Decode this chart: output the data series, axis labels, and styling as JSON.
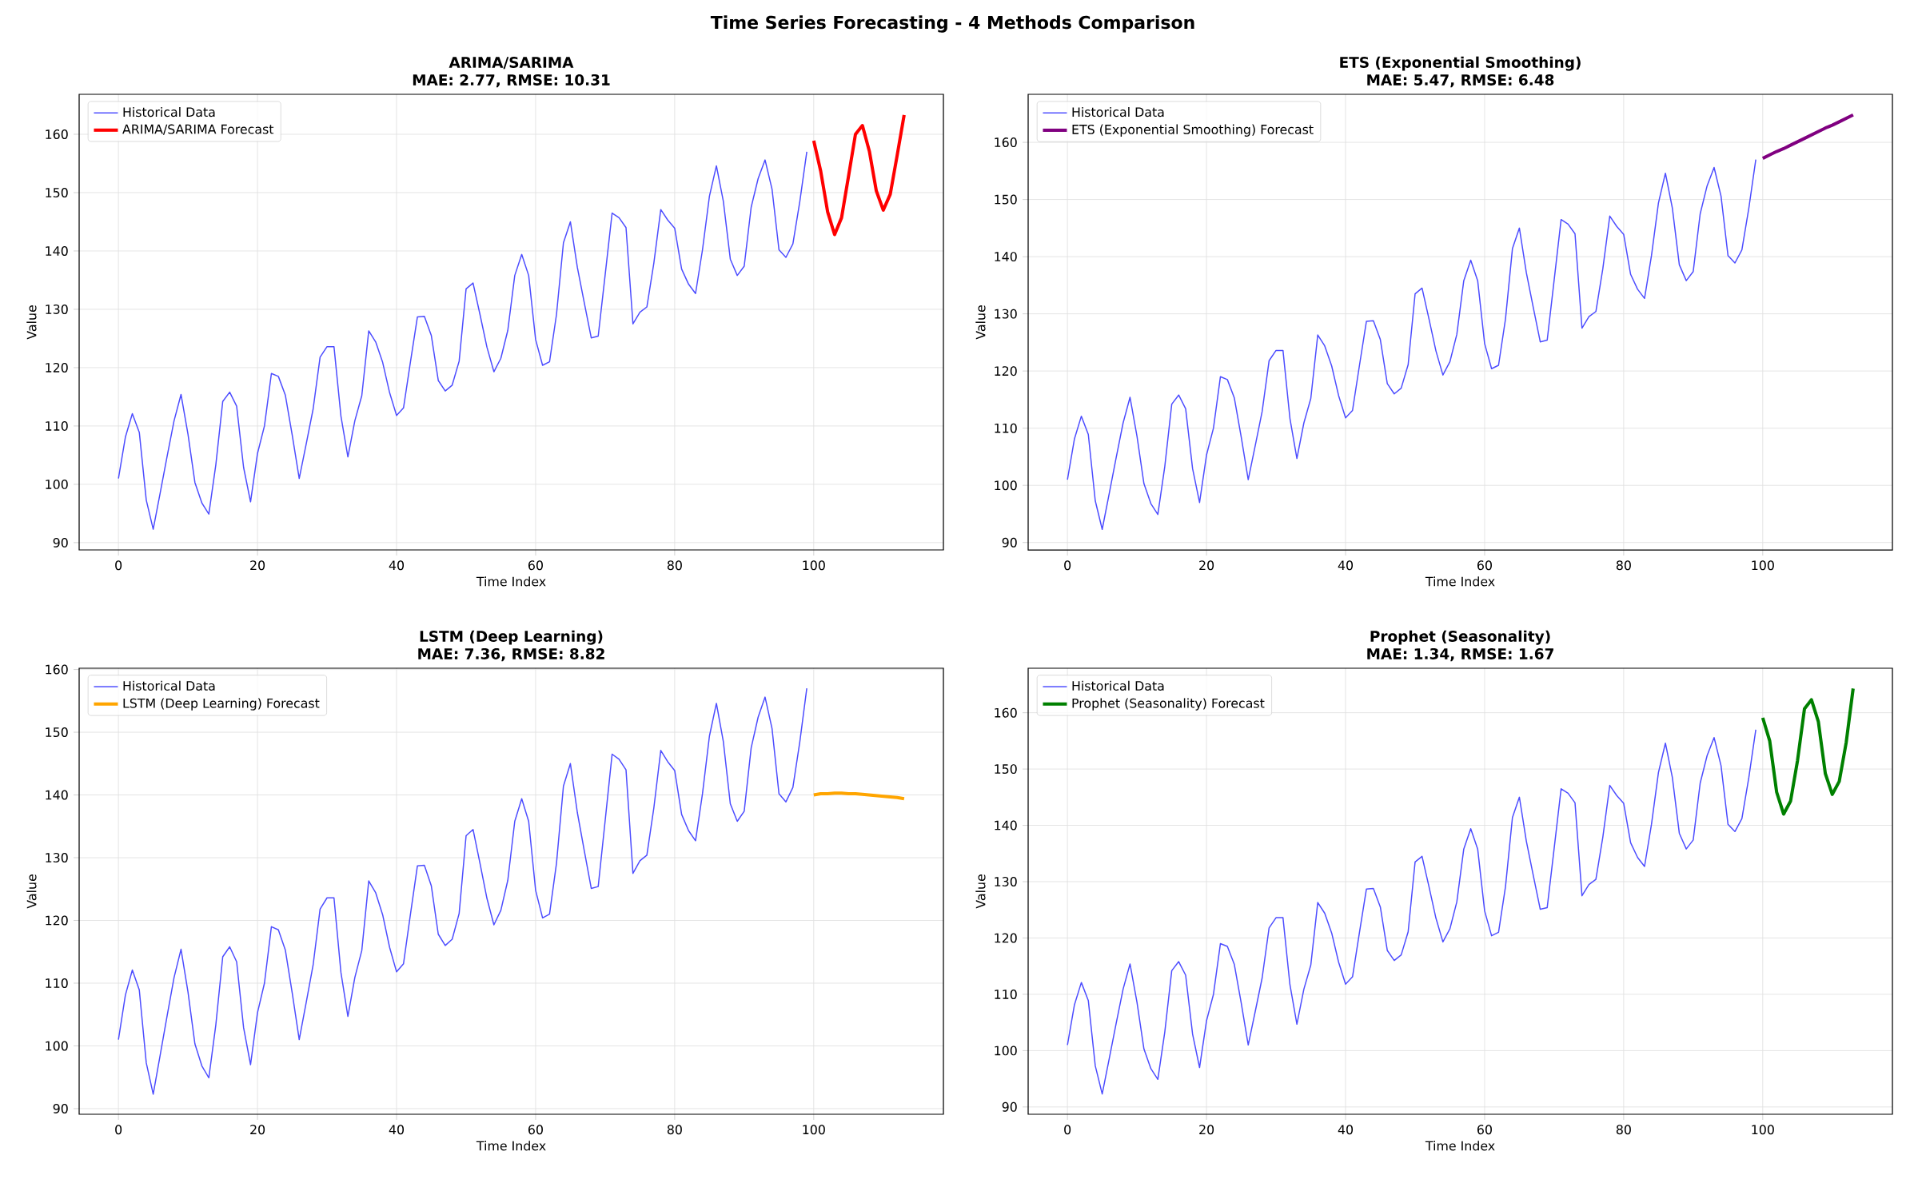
{
  "chart_data": [
    {
      "type": "line",
      "title": "ARIMA/SARIMA",
      "subtitle": "MAE: 2.77, RMSE: 10.31",
      "xlabel": "Time Index",
      "ylabel": "Value",
      "annotations": [
        "Time Series Forecasting - 4 Methods Comparison"
      ],
      "xlim": [
        -5.65,
        118.65
      ],
      "ylim": [
        88.75,
        166.85
      ],
      "xticks": [
        0,
        20,
        40,
        60,
        80,
        100
      ],
      "yticks": [
        90,
        100,
        110,
        120,
        130,
        140,
        150,
        160
      ],
      "grid": true,
      "legend": "top left",
      "series": [
        {
          "name": "Historical Data",
          "color": "#4d4dff",
          "x": [
            0,
            1,
            2,
            3,
            4,
            5,
            6,
            7,
            8,
            9,
            10,
            11,
            12,
            13,
            14,
            15,
            16,
            17,
            18,
            19,
            20,
            21,
            22,
            23,
            24,
            25,
            26,
            27,
            28,
            29,
            30,
            31,
            32,
            33,
            34,
            35,
            36,
            37,
            38,
            39,
            40,
            41,
            42,
            43,
            44,
            45,
            46,
            47,
            48,
            49,
            50,
            51,
            52,
            53,
            54,
            55,
            56,
            57,
            58,
            59,
            60,
            61,
            62,
            63,
            64,
            65,
            66,
            67,
            68,
            69,
            70,
            71,
            72,
            73,
            74,
            75,
            76,
            77,
            78,
            79,
            80,
            81,
            82,
            83,
            84,
            85,
            86,
            87,
            88,
            89,
            90,
            91,
            92,
            93,
            94,
            95,
            96,
            97,
            98,
            99
          ],
          "values": [
            101.0,
            108.1,
            112.1,
            108.9,
            97.3,
            92.3,
            98.5,
            104.8,
            110.9,
            115.4,
            108.6,
            100.3,
            96.8,
            94.9,
            103.3,
            114.2,
            115.8,
            113.4,
            102.9,
            97.0,
            105.3,
            110.0,
            119.0,
            118.5,
            115.3,
            108.4,
            101.0,
            106.9,
            112.9,
            121.8,
            123.6,
            123.6,
            111.7,
            104.7,
            110.9,
            115.2,
            126.3,
            124.4,
            120.9,
            115.7,
            111.8,
            113.1,
            121.0,
            128.7,
            128.8,
            125.5,
            117.8,
            116.0,
            117.0,
            121.1,
            133.5,
            134.5,
            129.1,
            123.5,
            119.3,
            121.6,
            126.4,
            135.8,
            139.4,
            135.8,
            124.8,
            120.4,
            121.0,
            129.1,
            141.4,
            145.0,
            137.2,
            131.1,
            125.1,
            125.4,
            135.9,
            146.5,
            145.7,
            144.0,
            127.5,
            129.5,
            130.4,
            137.9,
            147.1,
            145.3,
            143.9,
            136.9,
            134.3,
            132.7,
            140.2,
            149.4,
            154.6,
            148.5,
            138.6,
            135.8,
            137.4,
            147.5,
            152.4,
            155.6,
            150.6,
            140.2,
            138.9,
            141.2,
            148.5,
            157.0
          ]
        },
        {
          "name": "ARIMA/SARIMA Forecast",
          "color": "#ff0000",
          "x": [
            100,
            101,
            102,
            103,
            104,
            105,
            106,
            107,
            108,
            109,
            110,
            111,
            112,
            113
          ],
          "values": [
            158.9,
            153.7,
            146.7,
            142.8,
            145.7,
            152.8,
            160.0,
            161.5,
            157.1,
            150.3,
            147.0,
            149.7,
            156.4,
            163.3
          ]
        }
      ]
    },
    {
      "type": "line",
      "title": "ETS (Exponential Smoothing)",
      "subtitle": "MAE: 5.47, RMSE: 6.48",
      "xlabel": "Time Index",
      "ylabel": "Value",
      "xlim": [
        -5.65,
        118.65
      ],
      "ylim": [
        88.7,
        168.4
      ],
      "xticks": [
        0,
        20,
        40,
        60,
        80,
        100
      ],
      "yticks": [
        90,
        100,
        110,
        120,
        130,
        140,
        150,
        160
      ],
      "grid": true,
      "legend": "top left",
      "series": [
        {
          "name": "Historical Data",
          "color": "#4d4dff",
          "x": [
            0,
            1,
            2,
            3,
            4,
            5,
            6,
            7,
            8,
            9,
            10,
            11,
            12,
            13,
            14,
            15,
            16,
            17,
            18,
            19,
            20,
            21,
            22,
            23,
            24,
            25,
            26,
            27,
            28,
            29,
            30,
            31,
            32,
            33,
            34,
            35,
            36,
            37,
            38,
            39,
            40,
            41,
            42,
            43,
            44,
            45,
            46,
            47,
            48,
            49,
            50,
            51,
            52,
            53,
            54,
            55,
            56,
            57,
            58,
            59,
            60,
            61,
            62,
            63,
            64,
            65,
            66,
            67,
            68,
            69,
            70,
            71,
            72,
            73,
            74,
            75,
            76,
            77,
            78,
            79,
            80,
            81,
            82,
            83,
            84,
            85,
            86,
            87,
            88,
            89,
            90,
            91,
            92,
            93,
            94,
            95,
            96,
            97,
            98,
            99
          ],
          "values": [
            101.0,
            108.1,
            112.1,
            108.9,
            97.3,
            92.3,
            98.5,
            104.8,
            110.9,
            115.4,
            108.6,
            100.3,
            96.8,
            94.9,
            103.3,
            114.2,
            115.8,
            113.4,
            102.9,
            97.0,
            105.3,
            110.0,
            119.0,
            118.5,
            115.3,
            108.4,
            101.0,
            106.9,
            112.9,
            121.8,
            123.6,
            123.6,
            111.7,
            104.7,
            110.9,
            115.2,
            126.3,
            124.4,
            120.9,
            115.7,
            111.8,
            113.1,
            121.0,
            128.7,
            128.8,
            125.5,
            117.8,
            116.0,
            117.0,
            121.1,
            133.5,
            134.5,
            129.1,
            123.5,
            119.3,
            121.6,
            126.4,
            135.8,
            139.4,
            135.8,
            124.8,
            120.4,
            121.0,
            129.1,
            141.4,
            145.0,
            137.2,
            131.1,
            125.1,
            125.4,
            135.9,
            146.5,
            145.7,
            144.0,
            127.5,
            129.5,
            130.4,
            137.9,
            147.1,
            145.3,
            143.9,
            136.9,
            134.3,
            132.7,
            140.2,
            149.4,
            154.6,
            148.5,
            138.6,
            135.8,
            137.4,
            147.5,
            152.4,
            155.6,
            150.6,
            140.2,
            138.9,
            141.2,
            148.5,
            157.0
          ]
        },
        {
          "name": "ETS (Exponential Smoothing) Forecast",
          "color": "#800080",
          "x": [
            100,
            101,
            102,
            103,
            104,
            105,
            106,
            107,
            108,
            109,
            110,
            111,
            112,
            113
          ],
          "values": [
            157.2,
            157.8,
            158.4,
            158.9,
            159.5,
            160.1,
            160.7,
            161.3,
            161.9,
            162.5,
            163.0,
            163.6,
            164.2,
            164.8
          ]
        }
      ]
    },
    {
      "type": "line",
      "title": "LSTM (Deep Learning)",
      "subtitle": "MAE: 7.36, RMSE: 8.82",
      "xlabel": "Time Index",
      "ylabel": "Value",
      "xlim": [
        -5.65,
        118.65
      ],
      "ylim": [
        89.1,
        160.2
      ],
      "xticks": [
        0,
        20,
        40,
        60,
        80,
        100
      ],
      "yticks": [
        90,
        100,
        110,
        120,
        130,
        140,
        150,
        160
      ],
      "grid": true,
      "legend": "top left",
      "series": [
        {
          "name": "Historical Data",
          "color": "#4d4dff",
          "x": [
            0,
            1,
            2,
            3,
            4,
            5,
            6,
            7,
            8,
            9,
            10,
            11,
            12,
            13,
            14,
            15,
            16,
            17,
            18,
            19,
            20,
            21,
            22,
            23,
            24,
            25,
            26,
            27,
            28,
            29,
            30,
            31,
            32,
            33,
            34,
            35,
            36,
            37,
            38,
            39,
            40,
            41,
            42,
            43,
            44,
            45,
            46,
            47,
            48,
            49,
            50,
            51,
            52,
            53,
            54,
            55,
            56,
            57,
            58,
            59,
            60,
            61,
            62,
            63,
            64,
            65,
            66,
            67,
            68,
            69,
            70,
            71,
            72,
            73,
            74,
            75,
            76,
            77,
            78,
            79,
            80,
            81,
            82,
            83,
            84,
            85,
            86,
            87,
            88,
            89,
            90,
            91,
            92,
            93,
            94,
            95,
            96,
            97,
            98,
            99
          ],
          "values": [
            101.0,
            108.1,
            112.1,
            108.9,
            97.3,
            92.3,
            98.5,
            104.8,
            110.9,
            115.4,
            108.6,
            100.3,
            96.8,
            94.9,
            103.3,
            114.2,
            115.8,
            113.4,
            102.9,
            97.0,
            105.3,
            110.0,
            119.0,
            118.5,
            115.3,
            108.4,
            101.0,
            106.9,
            112.9,
            121.8,
            123.6,
            123.6,
            111.7,
            104.7,
            110.9,
            115.2,
            126.3,
            124.4,
            120.9,
            115.7,
            111.8,
            113.1,
            121.0,
            128.7,
            128.8,
            125.5,
            117.8,
            116.0,
            117.0,
            121.1,
            133.5,
            134.5,
            129.1,
            123.5,
            119.3,
            121.6,
            126.4,
            135.8,
            139.4,
            135.8,
            124.8,
            120.4,
            121.0,
            129.1,
            141.4,
            145.0,
            137.2,
            131.1,
            125.1,
            125.4,
            135.9,
            146.5,
            145.7,
            144.0,
            127.5,
            129.5,
            130.4,
            137.9,
            147.1,
            145.3,
            143.9,
            136.9,
            134.3,
            132.7,
            140.2,
            149.4,
            154.6,
            148.5,
            138.6,
            135.8,
            137.4,
            147.5,
            152.4,
            155.6,
            150.6,
            140.2,
            138.9,
            141.2,
            148.5,
            157.0
          ]
        },
        {
          "name": "LSTM (Deep Learning) Forecast",
          "color": "#ffa500",
          "x": [
            100,
            101,
            102,
            103,
            104,
            105,
            106,
            107,
            108,
            109,
            110,
            111,
            112,
            113
          ],
          "values": [
            140.0,
            140.2,
            140.2,
            140.3,
            140.3,
            140.2,
            140.2,
            140.1,
            140.0,
            139.9,
            139.8,
            139.7,
            139.6,
            139.4
          ]
        }
      ]
    },
    {
      "type": "line",
      "title": "Prophet (Seasonality)",
      "subtitle": "MAE: 1.34, RMSE: 1.67",
      "xlabel": "Time Index",
      "ylabel": "Value",
      "xlim": [
        -5.65,
        118.65
      ],
      "ylim": [
        88.7,
        167.9
      ],
      "xticks": [
        0,
        20,
        40,
        60,
        80,
        100
      ],
      "yticks": [
        90,
        100,
        110,
        120,
        130,
        140,
        150,
        160
      ],
      "grid": true,
      "legend": "top left",
      "series": [
        {
          "name": "Historical Data",
          "color": "#4d4dff",
          "x": [
            0,
            1,
            2,
            3,
            4,
            5,
            6,
            7,
            8,
            9,
            10,
            11,
            12,
            13,
            14,
            15,
            16,
            17,
            18,
            19,
            20,
            21,
            22,
            23,
            24,
            25,
            26,
            27,
            28,
            29,
            30,
            31,
            32,
            33,
            34,
            35,
            36,
            37,
            38,
            39,
            40,
            41,
            42,
            43,
            44,
            45,
            46,
            47,
            48,
            49,
            50,
            51,
            52,
            53,
            54,
            55,
            56,
            57,
            58,
            59,
            60,
            61,
            62,
            63,
            64,
            65,
            66,
            67,
            68,
            69,
            70,
            71,
            72,
            73,
            74,
            75,
            76,
            77,
            78,
            79,
            80,
            81,
            82,
            83,
            84,
            85,
            86,
            87,
            88,
            89,
            90,
            91,
            92,
            93,
            94,
            95,
            96,
            97,
            98,
            99
          ],
          "values": [
            101.0,
            108.1,
            112.1,
            108.9,
            97.3,
            92.3,
            98.5,
            104.8,
            110.9,
            115.4,
            108.6,
            100.3,
            96.8,
            94.9,
            103.3,
            114.2,
            115.8,
            113.4,
            102.9,
            97.0,
            105.3,
            110.0,
            119.0,
            118.5,
            115.3,
            108.4,
            101.0,
            106.9,
            112.9,
            121.8,
            123.6,
            123.6,
            111.7,
            104.7,
            110.9,
            115.2,
            126.3,
            124.4,
            120.9,
            115.7,
            111.8,
            113.1,
            121.0,
            128.7,
            128.8,
            125.5,
            117.8,
            116.0,
            117.0,
            121.1,
            133.5,
            134.5,
            129.1,
            123.5,
            119.3,
            121.6,
            126.4,
            135.8,
            139.4,
            135.8,
            124.8,
            120.4,
            121.0,
            129.1,
            141.4,
            145.0,
            137.2,
            131.1,
            125.1,
            125.4,
            135.9,
            146.5,
            145.7,
            144.0,
            127.5,
            129.5,
            130.4,
            137.9,
            147.1,
            145.3,
            143.9,
            136.9,
            134.3,
            132.7,
            140.2,
            149.4,
            154.6,
            148.5,
            138.6,
            135.8,
            137.4,
            147.5,
            152.4,
            155.6,
            150.6,
            140.2,
            138.9,
            141.2,
            148.5,
            157.0
          ]
        },
        {
          "name": "Prophet (Seasonality) Forecast",
          "color": "#008000",
          "x": [
            100,
            101,
            102,
            103,
            104,
            105,
            106,
            107,
            108,
            109,
            110,
            111,
            112,
            113
          ],
          "values": [
            159.1,
            155.0,
            145.9,
            142.0,
            144.3,
            151.5,
            160.7,
            162.3,
            158.4,
            149.2,
            145.5,
            147.8,
            154.7,
            164.3
          ]
        }
      ]
    }
  ]
}
